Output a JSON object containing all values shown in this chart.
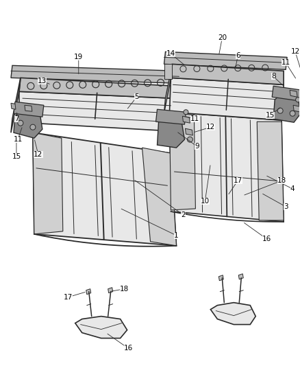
{
  "background_color": "#ffffff",
  "line_color": "#2a2a2a",
  "fill_light": "#d8d8d8",
  "fill_mid": "#c0c0c0",
  "fill_dark": "#a0a0a0",
  "fill_seat": "#e8e8e8",
  "figsize": [
    4.38,
    5.33
  ],
  "dpi": 100,
  "font_size": 7.5
}
